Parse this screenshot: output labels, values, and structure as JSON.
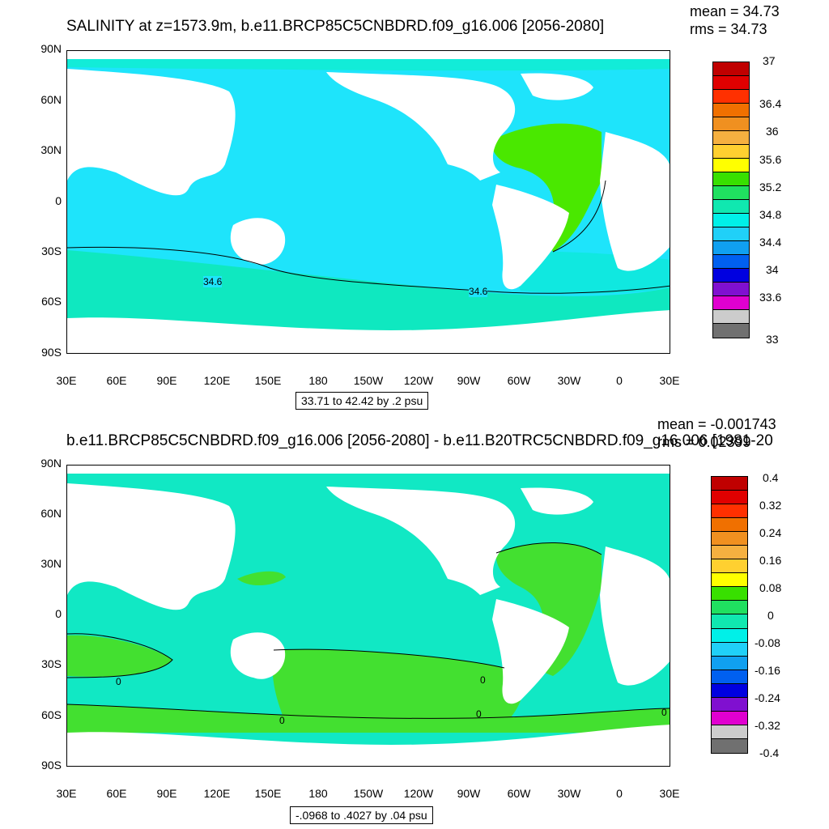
{
  "top": {
    "title": "SALINITY at z=1573.9m, b.e11.BRCP85C5CNBDRD.f09_g16.006 [2056-2080]",
    "mean": "mean = 34.73",
    "rms": "rms = 34.73",
    "range": "33.71 to 42.42 by .2 psu",
    "legend_labels": [
      "37",
      "36.4",
      "36",
      "35.6",
      "35.2",
      "34.8",
      "34.4",
      "34",
      "33.6",
      "33"
    ],
    "legend_colors": [
      "#c00000",
      "#e00000",
      "#ff3000",
      "#f07000",
      "#f09020",
      "#f5b040",
      "#ffd030",
      "#ffff00",
      "#38e000",
      "#20e060",
      "#10e8b0",
      "#00f0e8",
      "#20d0f8",
      "#10a0f0",
      "#0060f0",
      "#0000e0",
      "#8010d0",
      "#e000d0",
      "#cccccc",
      "#707070"
    ],
    "contour_labels": [
      "34.6",
      "34.6"
    ]
  },
  "bottom": {
    "title": "b.e11.BRCP85C5CNBDRD.f09_g16.006 [2056-2080] - b.e11.B20TRC5CNBDRD.f09_g16.006 [1981-20",
    "mean": "mean = -0.001743",
    "rms": "rms = 0.02399",
    "range": "-.0968 to .4027 by .04 psu",
    "legend_labels": [
      "0.4",
      "0.32",
      "0.24",
      "0.16",
      "0.08",
      "0",
      "-0.08",
      "-0.16",
      "-0.24",
      "-0.32",
      "-0.4"
    ],
    "legend_colors": [
      "#c00000",
      "#e00000",
      "#ff3000",
      "#f07000",
      "#f09020",
      "#f5b040",
      "#ffd030",
      "#ffff00",
      "#38e000",
      "#20e060",
      "#10e8b0",
      "#00f0e8",
      "#20d0f8",
      "#10a0f0",
      "#0060f0",
      "#0000e0",
      "#8010d0",
      "#e000d0",
      "#cccccc",
      "#707070"
    ],
    "contour_labels": [
      "0",
      "0",
      "0",
      "0",
      "0"
    ]
  },
  "axes": {
    "y_ticks": [
      "90N",
      "60N",
      "30N",
      "0",
      "30S",
      "60S",
      "90S"
    ],
    "x_ticks": [
      "30E",
      "60E",
      "90E",
      "120E",
      "150E",
      "180",
      "150W",
      "120W",
      "90W",
      "60W",
      "30W",
      "0",
      "30E"
    ]
  },
  "colors": {
    "ocean_top": "#1ee4fb",
    "ocean_top_north": "#12ecd8",
    "ocean_top_south": "#0fe8c0",
    "atlantic_top": "#4ae800",
    "ocean_bottom": "#11e8c4",
    "green_bottom": "#43e030",
    "land": "#ffffff"
  }
}
